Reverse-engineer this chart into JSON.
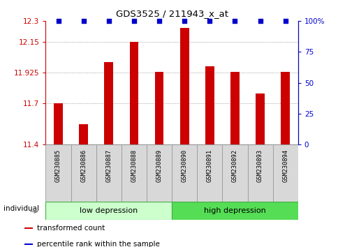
{
  "title": "GDS3525 / 211943_x_at",
  "samples": [
    "GSM230885",
    "GSM230886",
    "GSM230887",
    "GSM230888",
    "GSM230889",
    "GSM230890",
    "GSM230891",
    "GSM230892",
    "GSM230893",
    "GSM230894"
  ],
  "bar_values": [
    11.7,
    11.55,
    12.0,
    12.15,
    11.93,
    12.25,
    11.97,
    11.93,
    11.77,
    11.93
  ],
  "percentile_values": [
    100,
    100,
    100,
    100,
    100,
    100,
    100,
    100,
    100,
    100
  ],
  "bar_color": "#cc0000",
  "percentile_color": "#0000cc",
  "ylim_left": [
    11.4,
    12.3
  ],
  "ylim_right": [
    0,
    100
  ],
  "yticks_left": [
    11.4,
    11.7,
    11.925,
    12.15,
    12.3
  ],
  "ytick_labels_left": [
    "11.4",
    "11.7",
    "11.925",
    "12.15",
    "12.3"
  ],
  "yticks_right": [
    0,
    25,
    50,
    75,
    100
  ],
  "ytick_labels_right": [
    "0",
    "25",
    "50",
    "75",
    "100%"
  ],
  "groups": [
    {
      "label": "low depression",
      "start": 0,
      "end": 5,
      "color": "#ccffcc",
      "border_color": "#44aa44"
    },
    {
      "label": "high depression",
      "start": 5,
      "end": 10,
      "color": "#55dd55",
      "border_color": "#44aa44"
    }
  ],
  "legend_items": [
    {
      "label": "transformed count",
      "color": "#cc0000"
    },
    {
      "label": "percentile rank within the sample",
      "color": "#0000cc"
    }
  ],
  "individual_label": "individual",
  "background_color": "#ffffff",
  "grid_color": "#888888",
  "bar_width": 0.35,
  "box_color": "#d8d8d8",
  "box_edge_color": "#999999"
}
